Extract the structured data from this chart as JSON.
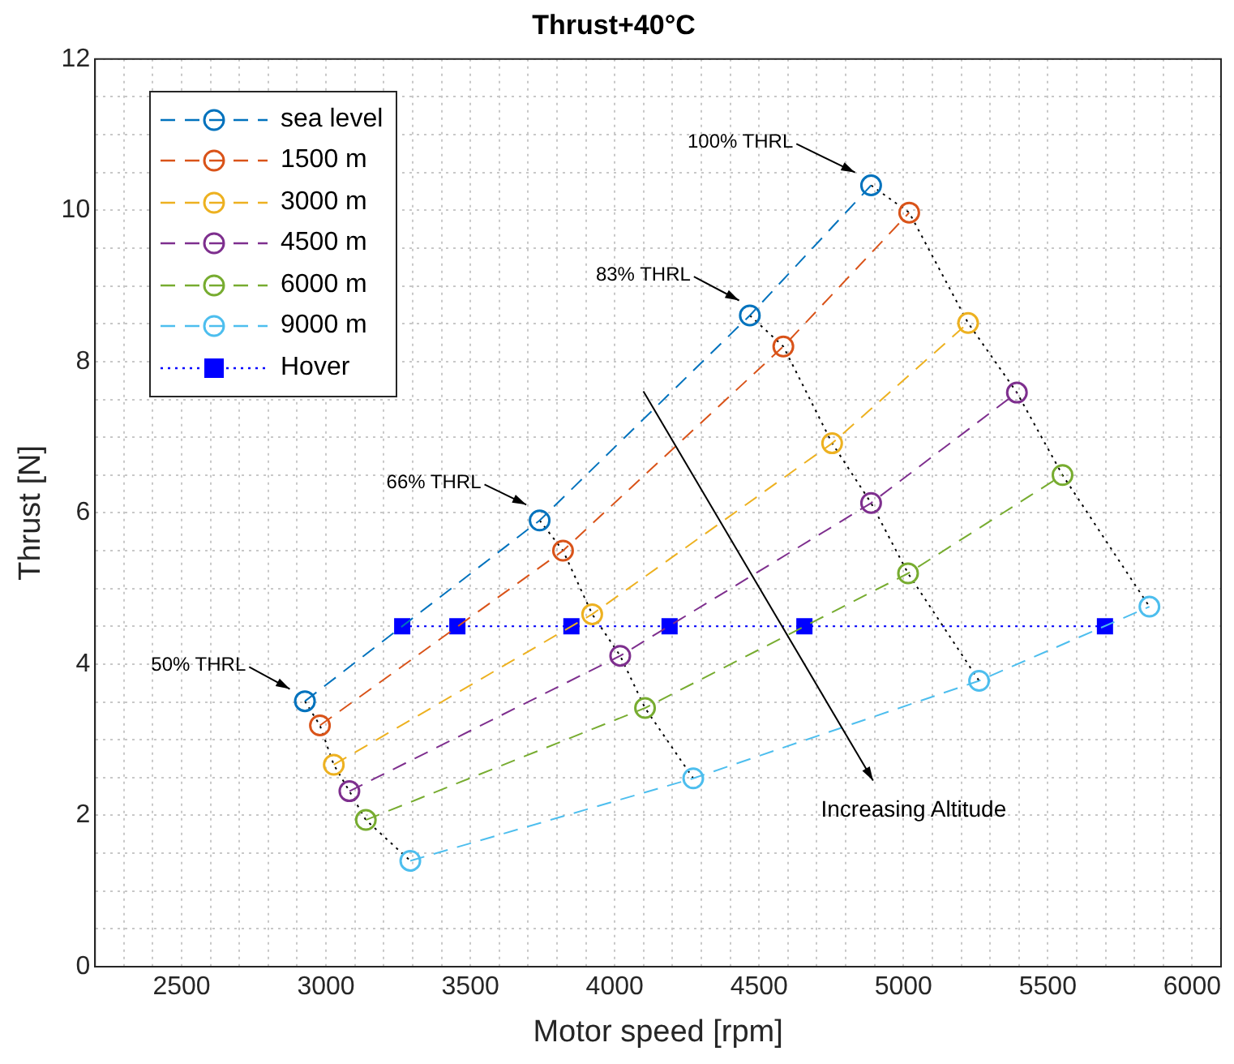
{
  "chart_data": {
    "type": "line",
    "title": "Thrust+40°C",
    "xlabel": "Motor speed [rpm]",
    "ylabel": "Thrust [N]",
    "xlim": [
      2200,
      6100
    ],
    "ylim": [
      0,
      12
    ],
    "xticks": [
      {
        "value": 2200,
        "label": null
      },
      {
        "value": 2300,
        "label": null
      },
      {
        "value": 2400,
        "label": null
      },
      2500,
      {
        "value": 2600,
        "label": null
      },
      {
        "value": 2700,
        "label": null
      },
      {
        "value": 2800,
        "label": null
      },
      {
        "value": 2900,
        "label": null
      },
      3000,
      {
        "value": 3100,
        "label": null
      },
      {
        "value": 3200,
        "label": null
      },
      {
        "value": 3300,
        "label": null
      },
      {
        "value": 3400,
        "label": null
      },
      3500,
      {
        "value": 3600,
        "label": null
      },
      {
        "value": 3700,
        "label": null
      },
      {
        "value": 3800,
        "label": null
      },
      {
        "value": 3900,
        "label": null
      },
      4000,
      {
        "value": 4100,
        "label": null
      },
      {
        "value": 4200,
        "label": null
      },
      {
        "value": 4300,
        "label": null
      },
      {
        "value": 4400,
        "label": null
      },
      4500,
      {
        "value": 4600,
        "label": null
      },
      {
        "value": 4700,
        "label": null
      },
      {
        "value": 4800,
        "label": null
      },
      {
        "value": 4900,
        "label": null
      },
      5000,
      {
        "value": 5100,
        "label": null
      },
      {
        "value": 5200,
        "label": null
      },
      {
        "value": 5300,
        "label": null
      },
      {
        "value": 5400,
        "label": null
      },
      5500,
      {
        "value": 5600,
        "label": null
      },
      {
        "value": 5700,
        "label": null
      },
      {
        "value": 5800,
        "label": null
      },
      {
        "value": 5900,
        "label": null
      },
      6000,
      {
        "value": 6100,
        "label": null
      }
    ],
    "yticks": [
      0,
      {
        "value": 0.5,
        "label": null
      },
      {
        "value": 1,
        "label": null
      },
      {
        "value": 1.5,
        "label": null
      },
      2,
      {
        "value": 2.5,
        "label": null
      },
      {
        "value": 3,
        "label": null
      },
      {
        "value": 3.5,
        "label": null
      },
      4,
      {
        "value": 4.5,
        "label": null
      },
      {
        "value": 5,
        "label": null
      },
      {
        "value": 5.5,
        "label": null
      },
      6,
      {
        "value": 6.5,
        "label": null
      },
      {
        "value": 7,
        "label": null
      },
      {
        "value": 7.5,
        "label": null
      },
      8,
      {
        "value": 8.5,
        "label": null
      },
      {
        "value": 9,
        "label": null
      },
      {
        "value": 9.5,
        "label": null
      },
      10,
      {
        "value": 10.5,
        "label": null
      },
      {
        "value": 11,
        "label": null
      },
      {
        "value": 11.5,
        "label": null
      },
      12
    ],
    "grid": true,
    "legend": "top left",
    "series": [
      {
        "name": "sea level",
        "color": "#0072bd",
        "marker": "circle",
        "line_style": "dashed",
        "x": [
          2927,
          3740,
          4468,
          4888
        ],
        "values": [
          3.51,
          5.9,
          8.61,
          10.33
        ]
      },
      {
        "name": "1500 m",
        "color": "#d95319",
        "marker": "circle",
        "line_style": "dashed",
        "x": [
          2979,
          3821,
          4584,
          5020
        ],
        "values": [
          3.19,
          5.5,
          8.2,
          9.97
        ]
      },
      {
        "name": "3000 m",
        "color": "#edb120",
        "marker": "circle",
        "line_style": "dashed",
        "x": [
          3027,
          3922,
          4753,
          5224
        ],
        "values": [
          2.67,
          4.66,
          6.92,
          8.51
        ]
      },
      {
        "name": "4500 m",
        "color": "#7e2f8e",
        "marker": "circle",
        "line_style": "dashed",
        "x": [
          3081,
          4019,
          4888,
          5393
        ],
        "values": [
          2.32,
          4.11,
          6.13,
          7.59
        ]
      },
      {
        "name": "6000 m",
        "color": "#77ac30",
        "marker": "circle",
        "line_style": "dashed",
        "x": [
          3138,
          4105,
          5016,
          5551
        ],
        "values": [
          1.94,
          3.42,
          5.2,
          6.5
        ]
      },
      {
        "name": "9000 m",
        "color": "#4dbeee",
        "marker": "circle",
        "line_style": "dashed",
        "x": [
          3292,
          4272,
          5262,
          5852
        ],
        "values": [
          1.4,
          2.49,
          3.78,
          4.76
        ]
      },
      {
        "name": "Hover",
        "color": "#0000ff",
        "marker": "square",
        "line_style": "dotted",
        "x": [
          3264,
          3455,
          3850,
          4190,
          4657,
          5698
        ],
        "values": [
          4.5,
          4.5,
          4.5,
          4.5,
          4.5,
          4.5
        ]
      },
      {
        "color": "#000000",
        "marker": "none",
        "line_style": "dotted",
        "x": [
          2927,
          2979,
          3027,
          3081,
          3138,
          3292
        ],
        "values": [
          3.51,
          3.19,
          2.67,
          2.32,
          1.94,
          1.4
        ]
      },
      {
        "color": "#000000",
        "marker": "none",
        "line_style": "dotted",
        "x": [
          3740,
          3821,
          3922,
          4019,
          4105,
          4272
        ],
        "values": [
          5.9,
          5.5,
          4.66,
          4.11,
          3.42,
          2.49
        ]
      },
      {
        "color": "#000000",
        "marker": "none",
        "line_style": "dotted",
        "x": [
          4468,
          4584,
          4753,
          4888,
          5016,
          5262
        ],
        "values": [
          8.61,
          8.2,
          6.92,
          6.13,
          5.2,
          3.78
        ]
      },
      {
        "color": "#000000",
        "marker": "none",
        "line_style": "dotted",
        "x": [
          4888,
          5020,
          5224,
          5393,
          5551,
          5852
        ],
        "values": [
          10.33,
          9.97,
          8.51,
          7.59,
          6.5,
          4.76
        ]
      }
    ],
    "annotations": [
      "100% THRL",
      "83% THRL",
      "66% THRL",
      "50% THRL",
      "Increasing Altitude"
    ]
  }
}
